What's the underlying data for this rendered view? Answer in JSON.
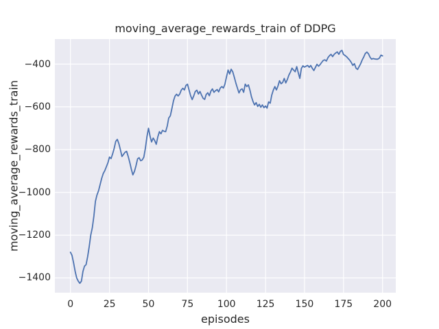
{
  "chart_data": {
    "type": "line",
    "title": "moving_average_rewards_train of DDPG",
    "xlabel": "episodes",
    "ylabel": "moving_average_rewards_train",
    "x_ticks": [
      0,
      25,
      50,
      75,
      100,
      125,
      150,
      175,
      200
    ],
    "y_ticks": [
      -400,
      -600,
      -800,
      -1000,
      -1200,
      -1400
    ],
    "xlim": [
      -10,
      208.5
    ],
    "ylim": [
      -1469,
      -283
    ],
    "grid": true,
    "legend_position": "none",
    "colors": {
      "line": "#4C72B0",
      "plot_background": "#EAEAF2",
      "grid": "#FFFFFF",
      "text": "#262626",
      "figure_background": "#FFFFFF"
    },
    "series": [
      {
        "name": "moving_average_rewards_train",
        "x_start": 0,
        "x_step": 1,
        "values": [
          -1280,
          -1295,
          -1330,
          -1370,
          -1400,
          -1415,
          -1425,
          -1415,
          -1370,
          -1345,
          -1338,
          -1300,
          -1255,
          -1200,
          -1165,
          -1110,
          -1042,
          -1012,
          -992,
          -963,
          -935,
          -912,
          -898,
          -880,
          -862,
          -835,
          -842,
          -820,
          -795,
          -762,
          -752,
          -772,
          -800,
          -832,
          -822,
          -812,
          -808,
          -832,
          -860,
          -892,
          -918,
          -902,
          -875,
          -843,
          -838,
          -852,
          -848,
          -835,
          -795,
          -740,
          -700,
          -738,
          -764,
          -746,
          -758,
          -775,
          -740,
          -716,
          -726,
          -710,
          -714,
          -716,
          -690,
          -652,
          -642,
          -608,
          -572,
          -550,
          -541,
          -549,
          -540,
          -522,
          -513,
          -521,
          -500,
          -494,
          -521,
          -548,
          -566,
          -549,
          -528,
          -522,
          -540,
          -528,
          -545,
          -560,
          -565,
          -542,
          -534,
          -548,
          -526,
          -516,
          -532,
          -524,
          -519,
          -530,
          -512,
          -505,
          -512,
          -494,
          -460,
          -428,
          -446,
          -424,
          -436,
          -462,
          -489,
          -512,
          -535,
          -520,
          -516,
          -532,
          -494,
          -505,
          -497,
          -521,
          -553,
          -575,
          -591,
          -580,
          -598,
          -588,
          -602,
          -591,
          -604,
          -596,
          -606,
          -577,
          -583,
          -545,
          -522,
          -505,
          -521,
          -502,
          -478,
          -492,
          -486,
          -467,
          -488,
          -472,
          -451,
          -437,
          -419,
          -428,
          -436,
          -412,
          -440,
          -467,
          -420,
          -408,
          -414,
          -410,
          -406,
          -415,
          -406,
          -420,
          -430,
          -415,
          -401,
          -410,
          -402,
          -392,
          -383,
          -380,
          -386,
          -370,
          -361,
          -354,
          -365,
          -354,
          -348,
          -343,
          -354,
          -340,
          -336,
          -355,
          -360,
          -366,
          -374,
          -382,
          -393,
          -406,
          -398,
          -419,
          -425,
          -412,
          -398,
          -380,
          -366,
          -350,
          -344,
          -352,
          -368,
          -377,
          -374,
          -376,
          -377,
          -377,
          -372,
          -358,
          -362
        ]
      }
    ]
  }
}
